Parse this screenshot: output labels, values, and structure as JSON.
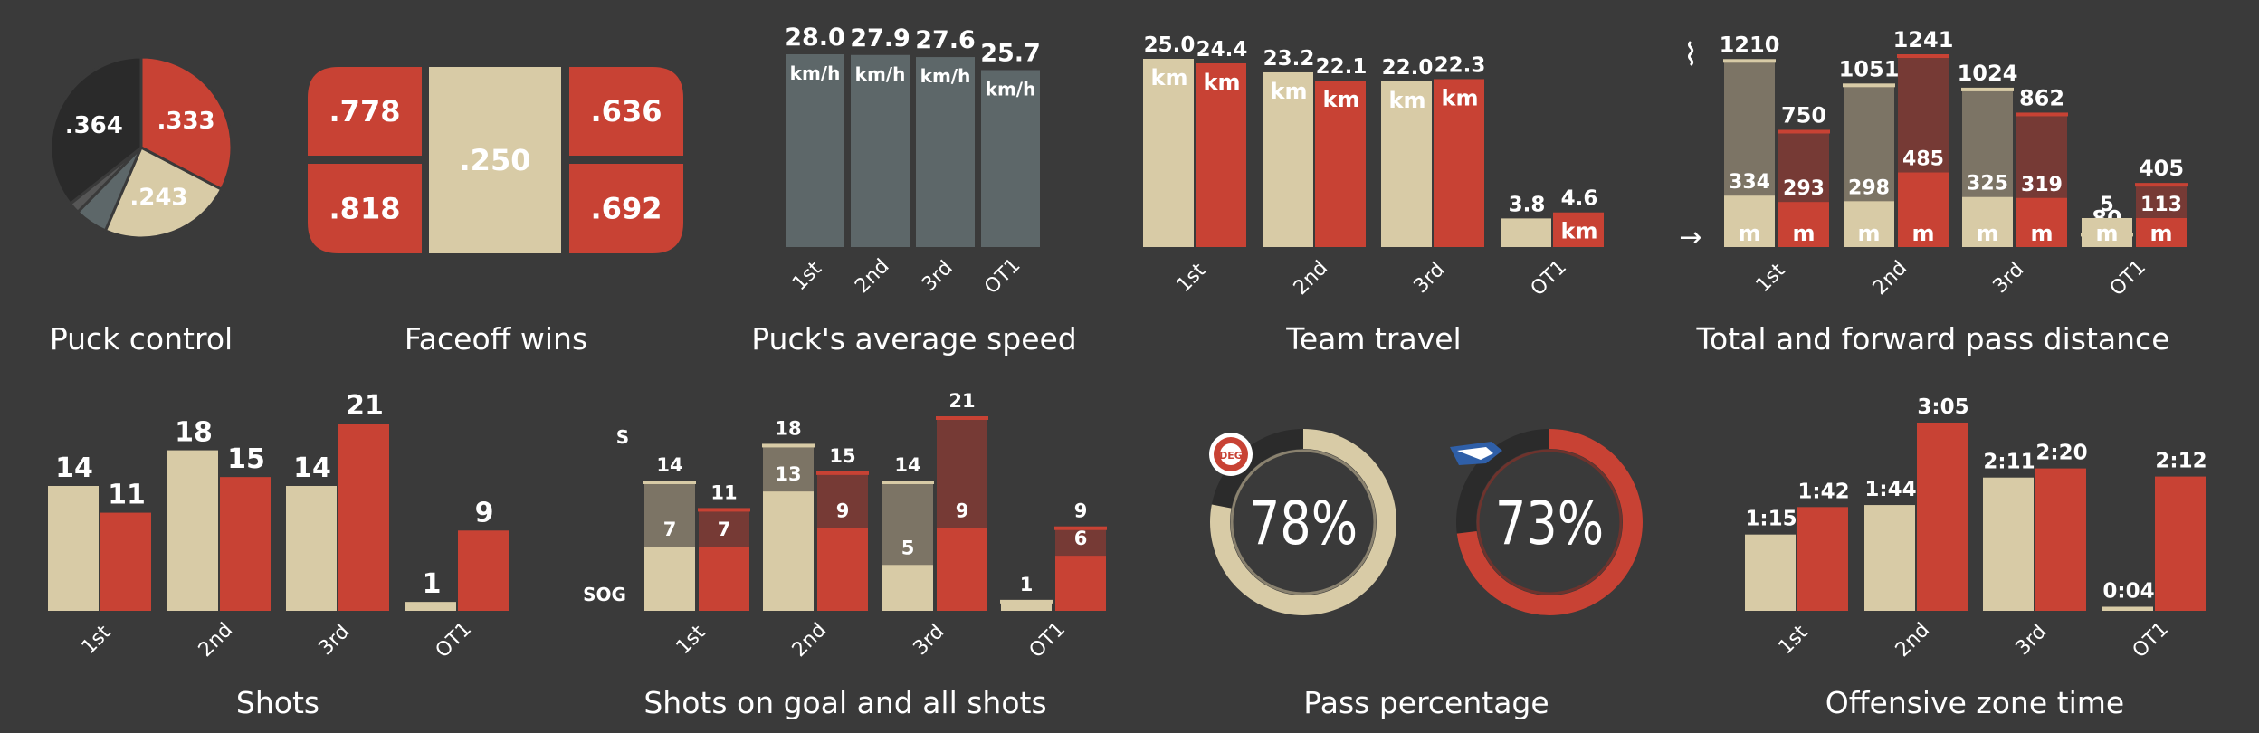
{
  "colors": {
    "background": "#3a3a3a",
    "home": "#d8cba6",
    "away": "#c84234",
    "home_dim": "#7c7465",
    "away_dim": "#763a35",
    "speed_bar": "#5d6769",
    "neutral": "#565656",
    "dark": "#2a2a2a",
    "ring_track": "#2b2b2b"
  },
  "chart_data": [
    {
      "id": "puck-control",
      "type": "pie",
      "title": "Puck control",
      "slices": [
        {
          "label": ".333",
          "value": 0.333,
          "color": "away"
        },
        {
          "label": ".243",
          "value": 0.243,
          "color": "home"
        },
        {
          "label": "",
          "value": 0.06,
          "color": "speed_bar"
        },
        {
          "label": "",
          "value": 0.02,
          "color": "neutral"
        },
        {
          "label": ".364",
          "value": 0.364,
          "color": "dark"
        }
      ]
    },
    {
      "id": "faceoff-wins",
      "type": "table",
      "title": "Faceoff wins",
      "cells": [
        {
          "label": ".778",
          "value": 0.778,
          "color": "away",
          "slot": "left-top"
        },
        {
          "label": ".818",
          "value": 0.818,
          "color": "away",
          "slot": "left-bottom"
        },
        {
          "label": ".250",
          "value": 0.25,
          "color": "home",
          "slot": "center"
        },
        {
          "label": ".636",
          "value": 0.636,
          "color": "away",
          "slot": "right-top"
        },
        {
          "label": ".692",
          "value": 0.692,
          "color": "away",
          "slot": "right-bottom"
        }
      ]
    },
    {
      "id": "puck-speed",
      "type": "bar",
      "title": "Puck's average speed",
      "categories": [
        "1st",
        "2nd",
        "3rd",
        "OT1"
      ],
      "unit": "km/h",
      "series": [
        {
          "values": [
            28.0,
            27.9,
            27.6,
            25.7
          ],
          "labels": [
            "28.0",
            "27.9",
            "27.6",
            "25.7"
          ],
          "color": "speed_bar"
        }
      ],
      "ylim": [
        0,
        28
      ]
    },
    {
      "id": "team-travel",
      "type": "bar",
      "title": "Team travel",
      "categories": [
        "1st",
        "2nd",
        "3rd",
        "OT1"
      ],
      "unit": "km",
      "series": [
        {
          "values": [
            25.0,
            23.2,
            22.0,
            3.8
          ],
          "labels": [
            "25.0",
            "23.2",
            "22.0",
            "3.8"
          ],
          "color": "home",
          "unit_show": [
            true,
            true,
            true,
            false
          ]
        },
        {
          "values": [
            24.4,
            22.1,
            22.3,
            4.6
          ],
          "labels": [
            "24.4",
            "22.1",
            "22.3",
            "4.6"
          ],
          "color": "away",
          "unit_show": [
            true,
            true,
            true,
            true
          ]
        }
      ],
      "ylim": [
        0,
        25
      ]
    },
    {
      "id": "pass-distance",
      "type": "bar",
      "title": "Total and forward pass distance",
      "categories": [
        "1st",
        "2nd",
        "3rd",
        "OT1"
      ],
      "unit": "m",
      "icons": [
        "zigzag-icon",
        "arrow-right-icon"
      ],
      "icon_text": [
        "⌇",
        "→"
      ],
      "series": [
        {
          "total": [
            1210,
            1051,
            1024,
            80
          ],
          "total_labels": [
            "1210",
            "1051",
            "1024",
            "80"
          ],
          "forward": [
            334,
            298,
            325,
            5
          ],
          "forward_labels": [
            "334",
            "298",
            "325",
            "5"
          ],
          "color": "home",
          "dim": "home_dim"
        },
        {
          "total": [
            750,
            1241,
            862,
            405
          ],
          "total_labels": [
            "750",
            "1241",
            "862",
            "405"
          ],
          "forward": [
            293,
            485,
            319,
            113
          ],
          "forward_labels": [
            "293",
            "485",
            "319",
            "113"
          ],
          "color": "away",
          "dim": "away_dim"
        }
      ],
      "ylim": [
        0,
        1241
      ]
    },
    {
      "id": "shots",
      "type": "bar",
      "title": "Shots",
      "categories": [
        "1st",
        "2nd",
        "3rd",
        "OT1"
      ],
      "series": [
        {
          "values": [
            14,
            18,
            14,
            1
          ],
          "labels": [
            "14",
            "18",
            "14",
            "1"
          ],
          "color": "home"
        },
        {
          "values": [
            11,
            15,
            21,
            9
          ],
          "labels": [
            "11",
            "15",
            "21",
            "9"
          ],
          "color": "away"
        }
      ],
      "ylim": [
        0,
        21
      ]
    },
    {
      "id": "shots-on-goal",
      "type": "bar",
      "title": "Shots on goal and all shots",
      "categories": [
        "1st",
        "2nd",
        "3rd",
        "OT1"
      ],
      "axis_labels": [
        "S",
        "SOG"
      ],
      "series": [
        {
          "total": [
            14,
            18,
            14,
            1
          ],
          "total_labels": [
            "14",
            "18",
            "14",
            "1"
          ],
          "sog": [
            7,
            13,
            5,
            1
          ],
          "sog_labels": [
            "7",
            "13",
            "5",
            ""
          ],
          "color": "home",
          "dim": "home_dim"
        },
        {
          "total": [
            11,
            15,
            21,
            9
          ],
          "total_labels": [
            "11",
            "15",
            "21",
            "9"
          ],
          "sog": [
            7,
            9,
            9,
            6
          ],
          "sog_labels": [
            "7",
            "9",
            "9",
            "6"
          ],
          "color": "away",
          "dim": "away_dim"
        }
      ],
      "ylim": [
        0,
        21
      ]
    },
    {
      "id": "pass-percentage",
      "type": "pie",
      "title": "Pass percentage",
      "rings": [
        {
          "value": 0.78,
          "label": "78%",
          "color": "home",
          "logo": "deg-logo-icon"
        },
        {
          "value": 0.73,
          "label": "73%",
          "color": "away",
          "logo": "wings-logo-icon"
        }
      ]
    },
    {
      "id": "offensive-zone-time",
      "type": "bar",
      "title": "Offensive zone time",
      "categories": [
        "1st",
        "2nd",
        "3rd",
        "OT1"
      ],
      "series": [
        {
          "values": [
            75,
            104,
            131,
            4
          ],
          "labels": [
            "1:15",
            "1:44",
            "2:11",
            "0:04"
          ],
          "color": "home"
        },
        {
          "values": [
            102,
            185,
            140,
            132
          ],
          "labels": [
            "1:42",
            "3:05",
            "2:20",
            "2:12"
          ],
          "color": "away"
        }
      ],
      "ylim": [
        0,
        185
      ]
    }
  ]
}
